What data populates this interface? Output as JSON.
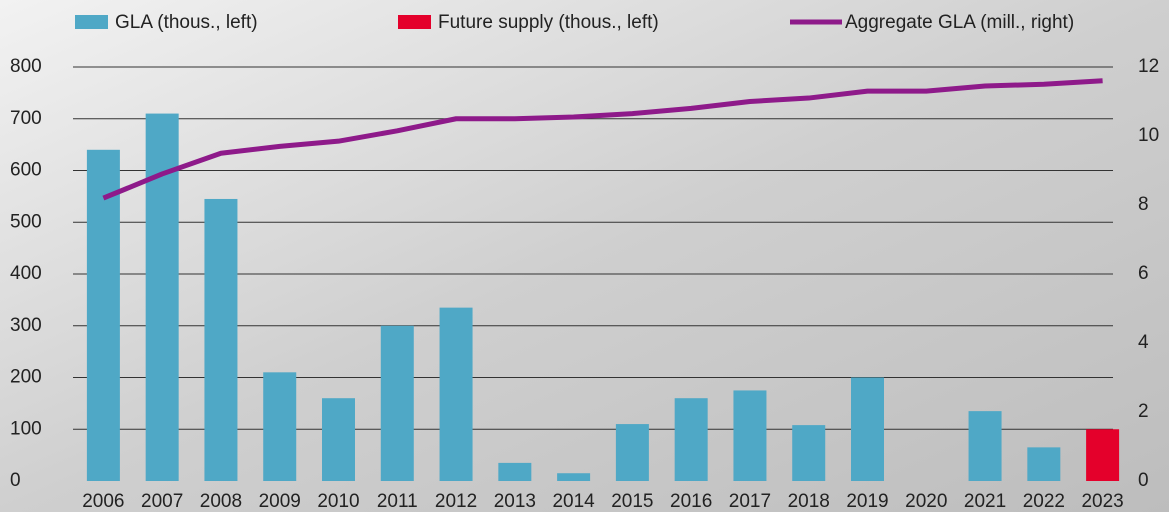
{
  "chart_data": {
    "type": "bar",
    "categories": [
      "2006",
      "2007",
      "2008",
      "2009",
      "2010",
      "2011",
      "2012",
      "2013",
      "2014",
      "2015",
      "2016",
      "2017",
      "2018",
      "2019",
      "2020",
      "2021",
      "2022",
      "2023"
    ],
    "series": [
      {
        "name": "GLA (thous., left)",
        "type": "bar",
        "color": "#4fa8c6",
        "values": [
          640,
          710,
          545,
          210,
          160,
          300,
          335,
          35,
          15,
          110,
          160,
          175,
          108,
          200,
          null,
          135,
          65,
          null
        ]
      },
      {
        "name": "Future supply (thous., left)",
        "type": "bar",
        "color": "#e4002b",
        "values": [
          null,
          null,
          null,
          null,
          null,
          null,
          null,
          null,
          null,
          null,
          null,
          null,
          null,
          null,
          null,
          null,
          null,
          100
        ]
      },
      {
        "name": "Aggregate GLA (mill., right)",
        "type": "line",
        "axis": "y2",
        "color": "#8e1a8a",
        "values": [
          8.2,
          8.9,
          9.5,
          9.7,
          9.85,
          10.15,
          10.5,
          10.5,
          10.55,
          10.65,
          10.8,
          11.0,
          11.1,
          11.3,
          11.3,
          11.45,
          11.5,
          11.6
        ]
      }
    ],
    "ylim": [
      0,
      800
    ],
    "yticks": [
      0,
      100,
      200,
      300,
      400,
      500,
      600,
      700,
      800
    ],
    "y2lim": [
      0,
      12
    ],
    "y2ticks": [
      0,
      2,
      4,
      6,
      8,
      10,
      12
    ],
    "grid": true,
    "legend": "top"
  }
}
